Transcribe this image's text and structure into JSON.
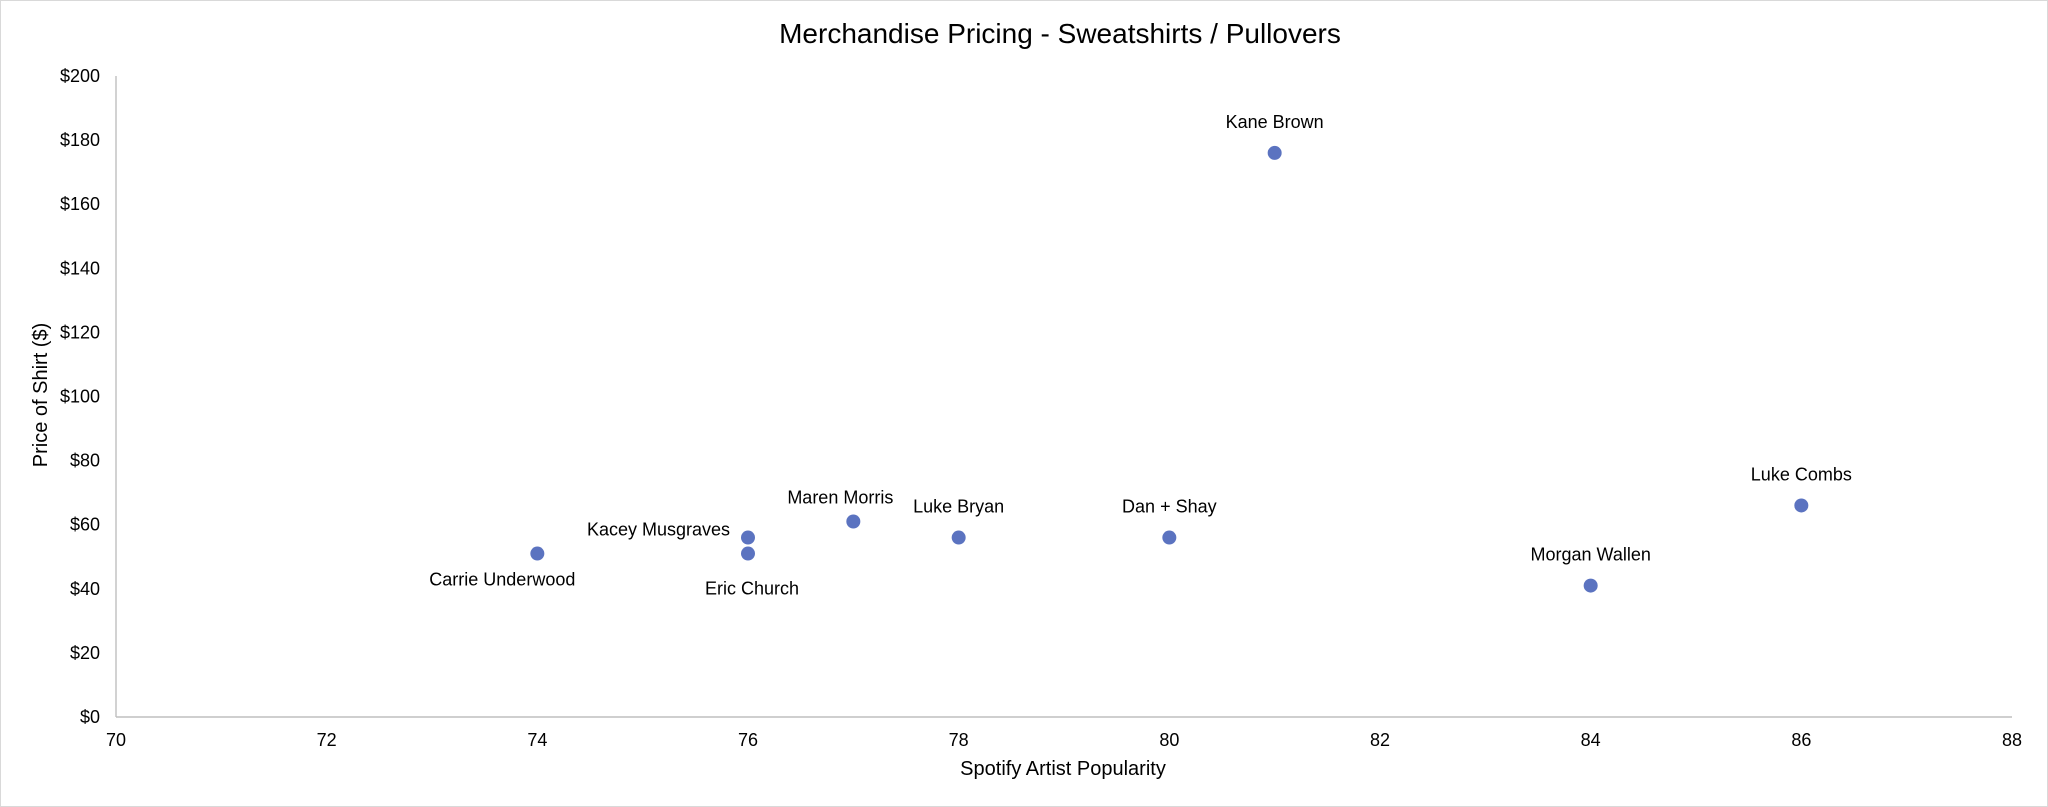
{
  "chart_data": {
    "type": "scatter",
    "title": "Merchandise Pricing - Sweatshirts / Pullovers",
    "xlabel": "Spotify Artist Popularity",
    "ylabel": "Price of Shirt ($)",
    "xlim": [
      70,
      88
    ],
    "ylim": [
      0,
      200
    ],
    "x_ticks": [
      "70",
      "72",
      "74",
      "76",
      "78",
      "80",
      "82",
      "84",
      "86",
      "88"
    ],
    "y_ticks": [
      "$0",
      "$20",
      "$40",
      "$60",
      "$80",
      "$100",
      "$120",
      "$140",
      "$160",
      "$180",
      "$200"
    ],
    "grid": false,
    "marker_color": "#5b73c0",
    "points": [
      {
        "label": "Carrie Underwood",
        "x": 74,
        "y": 51,
        "label_pos": "below-left"
      },
      {
        "label": "Kacey Musgraves",
        "x": 76,
        "y": 56,
        "label_pos": "left"
      },
      {
        "label": "Eric Church",
        "x": 76,
        "y": 51,
        "label_pos": "below"
      },
      {
        "label": "Maren Morris",
        "x": 77,
        "y": 61,
        "label_pos": "above-left"
      },
      {
        "label": "Luke Bryan",
        "x": 78,
        "y": 56,
        "label_pos": "above"
      },
      {
        "label": "Dan + Shay",
        "x": 80,
        "y": 56,
        "label_pos": "above"
      },
      {
        "label": "Kane Brown",
        "x": 81,
        "y": 176,
        "label_pos": "above"
      },
      {
        "label": "Morgan Wallen",
        "x": 84,
        "y": 41,
        "label_pos": "above"
      },
      {
        "label": "Luke Combs",
        "x": 86,
        "y": 66,
        "label_pos": "above"
      }
    ]
  }
}
